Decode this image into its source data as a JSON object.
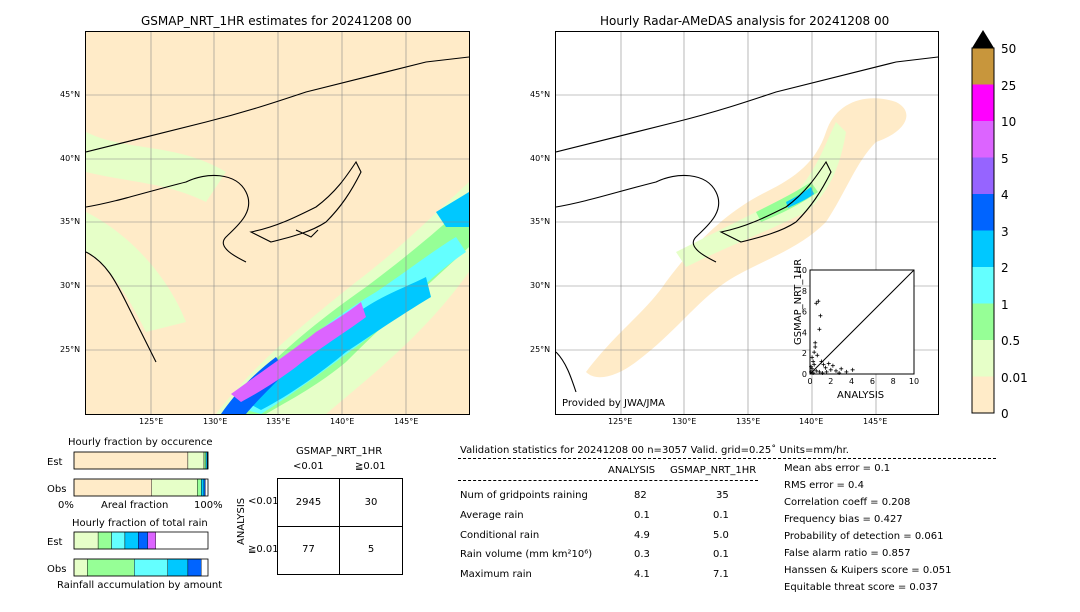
{
  "left_map": {
    "title": "GSMAP_NRT_1HR estimates for 20241208 00",
    "lat_ticks": [
      "45°N",
      "40°N",
      "35°N",
      "30°N",
      "25°N"
    ],
    "lon_ticks": [
      "125°E",
      "130°E",
      "135°E",
      "140°E",
      "145°E"
    ]
  },
  "right_map": {
    "title": "Hourly Radar-AMeDAS analysis for 20241208 00",
    "lat_ticks": [
      "45°N",
      "40°N",
      "35°N",
      "30°N",
      "25°N"
    ],
    "lon_ticks": [
      "125°E",
      "130°E",
      "135°E",
      "140°E",
      "145°E"
    ],
    "credit": "Provided by JWA/JMA"
  },
  "colorbar": {
    "labels": [
      "50",
      "25",
      "10",
      "5",
      "4",
      "3",
      "2",
      "1",
      "0.5",
      "0.01",
      "0"
    ],
    "colors": [
      "#c8963c",
      "#ff00ff",
      "#dc64ff",
      "#9664ff",
      "#0064ff",
      "#00c8ff",
      "#64ffff",
      "#96ff96",
      "#e6ffc8",
      "#ffebc8"
    ],
    "extend_color": "#000000"
  },
  "chart_data": [
    {
      "type": "scatter",
      "title": "",
      "xlabel": "ANALYSIS",
      "ylabel": "GSMAP_NRT_1HR",
      "xlim": [
        0,
        10
      ],
      "ylim": [
        0,
        10
      ],
      "xticks": [
        "0",
        "2",
        "4",
        "6",
        "8",
        "10"
      ],
      "yticks": [
        "0",
        "2",
        "4",
        "6",
        "8",
        "10"
      ],
      "points": [
        {
          "x": 0.1,
          "y": 0.2
        },
        {
          "x": 0.2,
          "y": 0.5
        },
        {
          "x": 0.3,
          "y": 1.2
        },
        {
          "x": 0.4,
          "y": 2.1
        },
        {
          "x": 0.5,
          "y": 3.0
        },
        {
          "x": 0.6,
          "y": 6.8
        },
        {
          "x": 0.8,
          "y": 7.0
        },
        {
          "x": 0.9,
          "y": 4.3
        },
        {
          "x": 1.0,
          "y": 5.6
        },
        {
          "x": 0.5,
          "y": 2.6
        },
        {
          "x": 0.7,
          "y": 1.8
        },
        {
          "x": 1.1,
          "y": 1.2
        },
        {
          "x": 1.3,
          "y": 0.9
        },
        {
          "x": 1.5,
          "y": 0.6
        },
        {
          "x": 1.8,
          "y": 1.0
        },
        {
          "x": 2.0,
          "y": 0.4
        },
        {
          "x": 2.2,
          "y": 0.8
        },
        {
          "x": 2.5,
          "y": 0.3
        },
        {
          "x": 3.0,
          "y": 0.5
        },
        {
          "x": 3.5,
          "y": 0.2
        },
        {
          "x": 4.1,
          "y": 0.4
        },
        {
          "x": 0.3,
          "y": 0.1
        },
        {
          "x": 0.6,
          "y": 0.3
        },
        {
          "x": 0.9,
          "y": 0.2
        },
        {
          "x": 1.2,
          "y": 0.1
        },
        {
          "x": 0.2,
          "y": 1.6
        },
        {
          "x": 0.4,
          "y": 0.9
        },
        {
          "x": 1.6,
          "y": 0.2
        },
        {
          "x": 2.8,
          "y": 0.1
        },
        {
          "x": 0.1,
          "y": 0.7
        }
      ]
    },
    {
      "type": "bar",
      "title": "Hourly fraction by occurence",
      "categories": [
        "Est",
        "Obs"
      ],
      "xlabel": "Areal fraction",
      "xticks": [
        "0%",
        "100%"
      ],
      "series": [
        {
          "color": "#ffebc8",
          "values": [
            0.85,
            0.58
          ]
        },
        {
          "color": "#e6ffc8",
          "values": [
            0.12,
            0.34
          ]
        },
        {
          "color": "#96ff96",
          "values": [
            0.015,
            0.03
          ]
        },
        {
          "color": "#00c8ff",
          "values": [
            0.01,
            0.02
          ]
        },
        {
          "color": "#0064ff",
          "values": [
            0.005,
            0.01
          ]
        }
      ]
    },
    {
      "type": "bar",
      "title": "Hourly fraction of total rain",
      "categories": [
        "Est",
        "Obs"
      ],
      "xlabel": "Rainfall accumulation by amount",
      "series": [
        {
          "color": "#e6ffc8",
          "values": [
            0.18,
            0.1
          ]
        },
        {
          "color": "#96ff96",
          "values": [
            0.1,
            0.35
          ]
        },
        {
          "color": "#64ffff",
          "values": [
            0.1,
            0.25
          ]
        },
        {
          "color": "#00c8ff",
          "values": [
            0.1,
            0.15
          ]
        },
        {
          "color": "#0064ff",
          "values": [
            0.07,
            0.1
          ]
        },
        {
          "color": "#dc64ff",
          "values": [
            0.06,
            0.0
          ]
        }
      ]
    }
  ],
  "contingency": {
    "header_title": "GSMAP_NRT_1HR",
    "col_lt": "<0.01",
    "col_ge": "≧0.01",
    "row_axis": "ANALYSIS",
    "row_lt": "<0.01",
    "row_ge": "≧0.01",
    "c11": "2945",
    "c12": "30",
    "c21": "77",
    "c22": "5"
  },
  "validation": {
    "header": "Validation statistics for 20241208 00  n=3057 Valid. grid=0.25˚ Units=mm/hr.",
    "col_analysis": "ANALYSIS",
    "col_gsmap": "GSMAP_NRT_1HR",
    "rows": [
      {
        "label": "Num of gridpoints raining",
        "a": "82",
        "g": "35"
      },
      {
        "label": "Average rain",
        "a": "0.1",
        "g": "0.1"
      },
      {
        "label": "Conditional rain",
        "a": "4.9",
        "g": "5.0"
      },
      {
        "label": "Rain volume (mm km²10⁶)",
        "a": "0.3",
        "g": "0.1"
      },
      {
        "label": "Maximum rain",
        "a": "4.1",
        "g": "7.1"
      }
    ],
    "scores": [
      "Mean abs error =    0.1",
      "RMS error =    0.4",
      "Correlation coeff =  0.208",
      "Frequency bias =  0.427",
      "Probability of detection =  0.061",
      "False alarm ratio =  0.857",
      "Hanssen & Kuipers score =  0.051",
      "Equitable threat score =  0.037"
    ]
  }
}
